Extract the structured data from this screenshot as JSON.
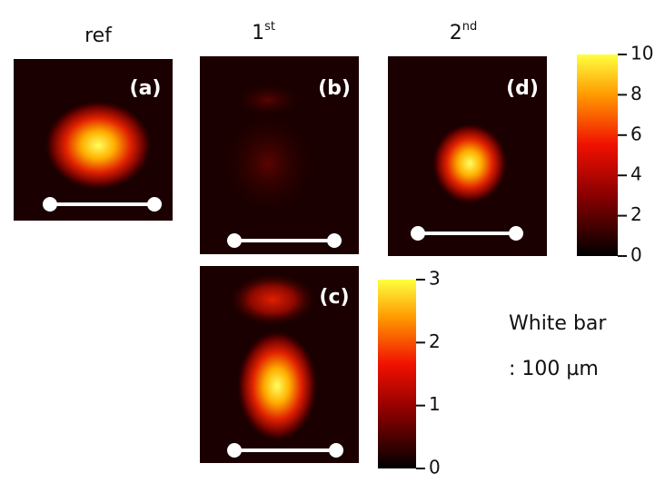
{
  "headers": [
    {
      "base": "ref"
    },
    {
      "base": "1",
      "sup": "st"
    },
    {
      "base": "2",
      "sup": "nd"
    }
  ],
  "panels": [
    {
      "label": "(a)"
    },
    {
      "label": "(b)"
    },
    {
      "label": "(c)"
    },
    {
      "label": "(d)"
    }
  ],
  "colorbars": [
    {
      "lim": [
        0,
        10
      ],
      "ticks": [
        0,
        2,
        4,
        6,
        8,
        10
      ]
    },
    {
      "lim": [
        0,
        3
      ],
      "ticks": [
        0,
        1,
        2,
        3
      ]
    }
  ],
  "note": [
    "White bar",
    ": 100 µm"
  ]
}
